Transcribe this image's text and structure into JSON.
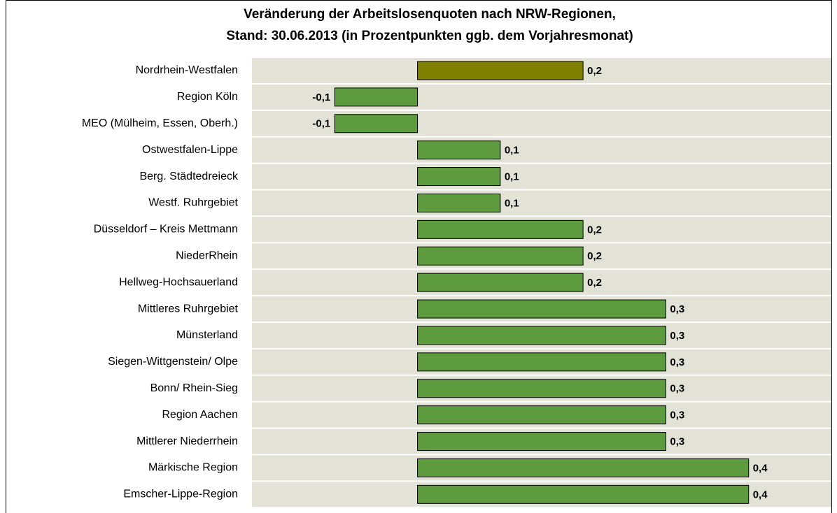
{
  "chart_data": {
    "type": "barh",
    "title": [
      "Veränderung der Arbeitslosenquoten nach NRW-Regionen,",
      "Stand: 30.06.2013 (in Prozentpunkten ggb. dem Vorjahresmonat)"
    ],
    "categories": [
      "Nordrhein-Westfalen",
      "Region Köln",
      "MEO (Mülheim, Essen, Oberh.)",
      "Ostwestfalen-Lippe",
      "Berg. Städtedreieck",
      "Westf. Ruhrgebiet",
      "Düsseldorf – Kreis Mettmann",
      "NiederRhein",
      "Hellweg-Hochsauerland",
      "Mittleres Ruhrgebiet",
      "Münsterland",
      "Siegen-Wittgenstein/ Olpe",
      "Bonn/ Rhein-Sieg",
      "Region Aachen",
      "Mittlerer Niederrhein",
      "Märkische Region",
      "Emscher-Lippe-Region"
    ],
    "values": [
      0.2,
      -0.1,
      -0.1,
      0.1,
      0.1,
      0.1,
      0.2,
      0.2,
      0.2,
      0.3,
      0.3,
      0.3,
      0.3,
      0.3,
      0.3,
      0.4,
      0.4
    ],
    "value_labels": [
      "0,2",
      "-0,1",
      "-0,1",
      "0,1",
      "0,1",
      "0,1",
      "0,2",
      "0,2",
      "0,2",
      "0,3",
      "0,3",
      "0,3",
      "0,3",
      "0,3",
      "0,3",
      "0,4",
      "0,4"
    ],
    "colors": [
      "#808000",
      "#5e9a3e",
      "#5e9a3e",
      "#5e9a3e",
      "#5e9a3e",
      "#5e9a3e",
      "#5e9a3e",
      "#5e9a3e",
      "#5e9a3e",
      "#5e9a3e",
      "#5e9a3e",
      "#5e9a3e",
      "#5e9a3e",
      "#5e9a3e",
      "#5e9a3e",
      "#5e9a3e",
      "#5e9a3e"
    ],
    "xlim": [
      -0.2,
      0.5
    ]
  }
}
